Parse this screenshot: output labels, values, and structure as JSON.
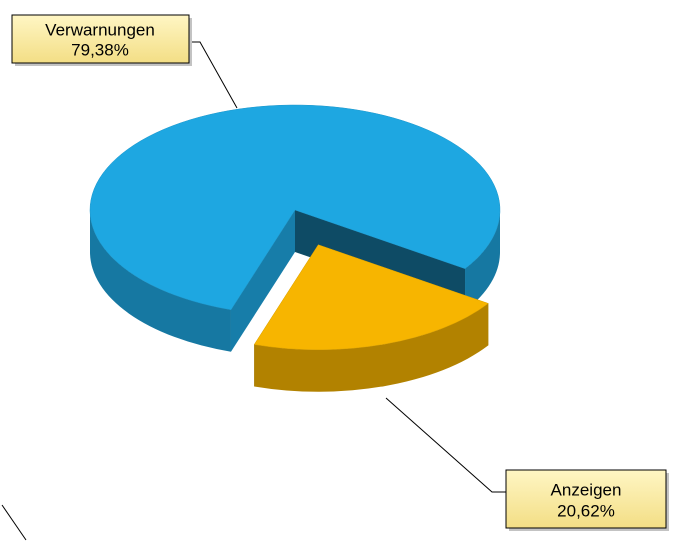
{
  "chart_data": {
    "type": "pie",
    "categories": [
      "Verwarnungen",
      "Anzeigen"
    ],
    "values": [
      79.38,
      20.62
    ],
    "value_labels": [
      "79,38%",
      "20,62%"
    ],
    "colors": [
      "#1ea7e1",
      "#f7b500"
    ],
    "exploded": [
      false,
      true
    ],
    "legend": false
  }
}
